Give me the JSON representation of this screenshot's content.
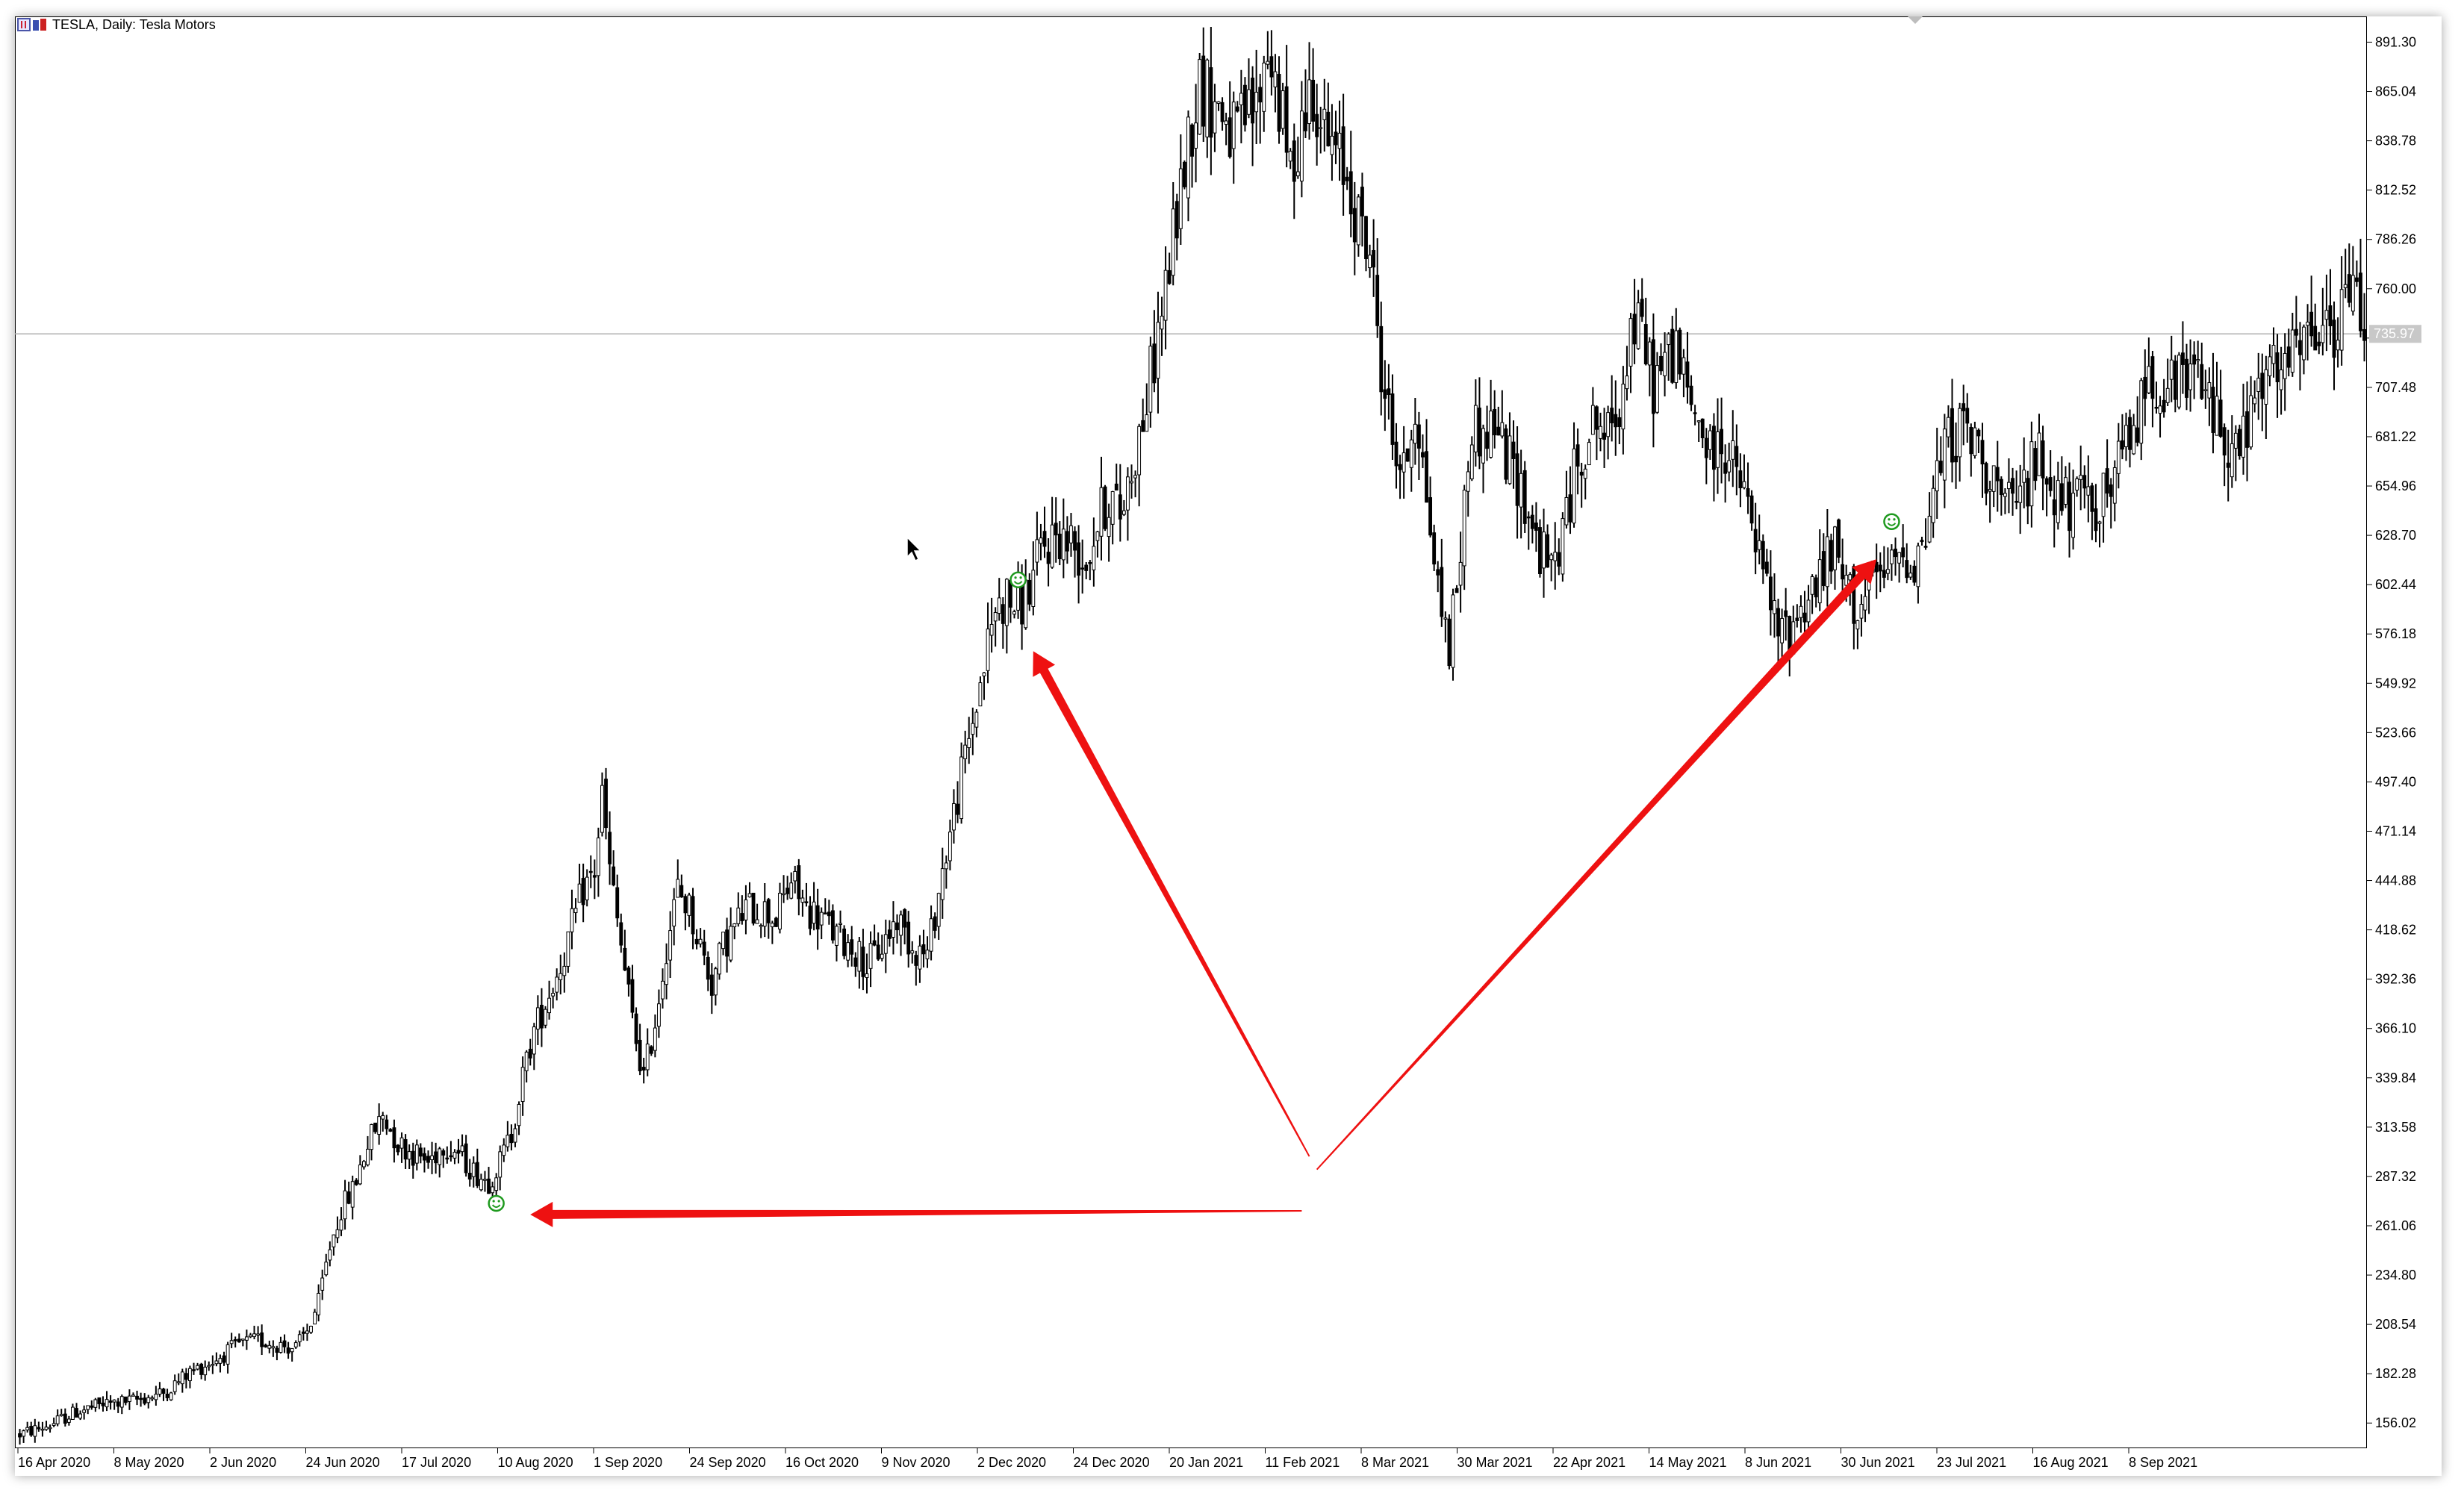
{
  "window": {
    "symbol": "TESLA",
    "timeframe": "Daily",
    "description": "Tesla Motors",
    "title": "TESLA, Daily:  Tesla Motors"
  },
  "icons": [
    "chart-type-icon",
    "mouse-cursor-icon",
    "smiley-marker-icon",
    "red-arrow-annotation"
  ],
  "colors": {
    "candle": "#000000",
    "price_line": "#b0b0b0",
    "arrow": "#ee1111",
    "marker": "#1f9a1f",
    "price_label_bg": "#c8c8c8"
  },
  "chart_data": {
    "type": "candlestick",
    "title": "TESLA, Daily:  Tesla Motors",
    "ylim": [
      143,
      905
    ],
    "grid": false,
    "y_ticks": [
      "891.30",
      "865.04",
      "838.78",
      "812.52",
      "786.26",
      "760.00",
      "733.74",
      "707.48",
      "681.22",
      "654.96",
      "628.70",
      "602.44",
      "576.18",
      "549.92",
      "523.66",
      "497.40",
      "471.14",
      "444.88",
      "418.62",
      "392.36",
      "366.10",
      "339.84",
      "313.58",
      "287.32",
      "261.06",
      "234.80",
      "208.54",
      "182.28",
      "156.02"
    ],
    "x_ticks": [
      "16 Apr 2020",
      "8 May 2020",
      "2 Jun 2020",
      "24 Jun 2020",
      "17 Jul 2020",
      "10 Aug 2020",
      "1 Sep 2020",
      "24 Sep 2020",
      "16 Oct 2020",
      "9 Nov 2020",
      "2 Dec 2020",
      "24 Dec 2020",
      "20 Jan 2021",
      "11 Feb 2021",
      "8 Mar 2021",
      "30 Mar 2021",
      "22 Apr 2021",
      "14 May 2021",
      "8 Jun 2021",
      "30 Jun 2021",
      "23 Jul 2021",
      "16 Aug 2021",
      "8 Sep 2021"
    ],
    "current_price": {
      "value": 735.97,
      "label": "735.97"
    },
    "close_path": [
      [
        0,
        150
      ],
      [
        8,
        155
      ],
      [
        15,
        162
      ],
      [
        22,
        166
      ],
      [
        30,
        168
      ],
      [
        38,
        172
      ],
      [
        45,
        183
      ],
      [
        52,
        190
      ],
      [
        58,
        198
      ],
      [
        63,
        200
      ],
      [
        68,
        198
      ],
      [
        73,
        196
      ],
      [
        76,
        205
      ],
      [
        79,
        220
      ],
      [
        82,
        250
      ],
      [
        85,
        270
      ],
      [
        88,
        280
      ],
      [
        92,
        305
      ],
      [
        96,
        320
      ],
      [
        100,
        305
      ],
      [
        104,
        300
      ],
      [
        108,
        295
      ],
      [
        112,
        305
      ],
      [
        116,
        300
      ],
      [
        120,
        290
      ],
      [
        124,
        285
      ],
      [
        127,
        295
      ],
      [
        130,
        310
      ],
      [
        133,
        340
      ],
      [
        136,
        365
      ],
      [
        140,
        385
      ],
      [
        143,
        400
      ],
      [
        146,
        420
      ],
      [
        149,
        440
      ],
      [
        152,
        450
      ],
      [
        154,
        490
      ],
      [
        156,
        450
      ],
      [
        159,
        410
      ],
      [
        162,
        370
      ],
      [
        165,
        340
      ],
      [
        168,
        370
      ],
      [
        171,
        410
      ],
      [
        174,
        440
      ],
      [
        177,
        430
      ],
      [
        180,
        410
      ],
      [
        183,
        390
      ],
      [
        186,
        410
      ],
      [
        189,
        420
      ],
      [
        192,
        430
      ],
      [
        196,
        430
      ],
      [
        200,
        425
      ],
      [
        204,
        445
      ],
      [
        208,
        430
      ],
      [
        212,
        425
      ],
      [
        216,
        415
      ],
      [
        220,
        410
      ],
      [
        224,
        400
      ],
      [
        228,
        410
      ],
      [
        232,
        425
      ],
      [
        236,
        410
      ],
      [
        240,
        405
      ],
      [
        244,
        450
      ],
      [
        248,
        490
      ],
      [
        252,
        530
      ],
      [
        255,
        560
      ],
      [
        258,
        590
      ],
      [
        261,
        595
      ],
      [
        264,
        590
      ],
      [
        267,
        600
      ],
      [
        270,
        620
      ],
      [
        274,
        630
      ],
      [
        278,
        625
      ],
      [
        282,
        615
      ],
      [
        285,
        635
      ],
      [
        288,
        650
      ],
      [
        291,
        640
      ],
      [
        294,
        665
      ],
      [
        297,
        690
      ],
      [
        300,
        725
      ],
      [
        303,
        760
      ],
      [
        306,
        800
      ],
      [
        309,
        840
      ],
      [
        312,
        870
      ],
      [
        315,
        860
      ],
      [
        318,
        855
      ],
      [
        321,
        840
      ],
      [
        324,
        850
      ],
      [
        327,
        855
      ],
      [
        330,
        890
      ],
      [
        333,
        860
      ],
      [
        336,
        820
      ],
      [
        339,
        850
      ],
      [
        342,
        870
      ],
      [
        345,
        840
      ],
      [
        348,
        830
      ],
      [
        351,
        820
      ],
      [
        354,
        795
      ],
      [
        357,
        780
      ],
      [
        360,
        720
      ],
      [
        363,
        680
      ],
      [
        366,
        660
      ],
      [
        369,
        700
      ],
      [
        372,
        650
      ],
      [
        375,
        600
      ],
      [
        378,
        570
      ],
      [
        381,
        620
      ],
      [
        384,
        690
      ],
      [
        387,
        680
      ],
      [
        390,
        690
      ],
      [
        393,
        670
      ],
      [
        396,
        660
      ],
      [
        399,
        640
      ],
      [
        402,
        620
      ],
      [
        405,
        610
      ],
      [
        408,
        630
      ],
      [
        411,
        660
      ],
      [
        414,
        680
      ],
      [
        417,
        690
      ],
      [
        420,
        680
      ],
      [
        423,
        700
      ],
      [
        426,
        740
      ],
      [
        429,
        735
      ],
      [
        432,
        710
      ],
      [
        435,
        720
      ],
      [
        438,
        730
      ],
      [
        441,
        700
      ],
      [
        444,
        690
      ],
      [
        447,
        670
      ],
      [
        450,
        680
      ],
      [
        453,
        665
      ],
      [
        456,
        650
      ],
      [
        459,
        625
      ],
      [
        462,
        600
      ],
      [
        465,
        575
      ],
      [
        468,
        580
      ],
      [
        471,
        590
      ],
      [
        474,
        600
      ],
      [
        477,
        610
      ],
      [
        480,
        620
      ],
      [
        483,
        600
      ],
      [
        486,
        590
      ],
      [
        489,
        600
      ],
      [
        492,
        605
      ],
      [
        495,
        610
      ],
      [
        498,
        620
      ],
      [
        501,
        615
      ],
      [
        504,
        630
      ],
      [
        507,
        660
      ],
      [
        510,
        680
      ],
      [
        513,
        685
      ],
      [
        516,
        680
      ],
      [
        519,
        670
      ],
      [
        522,
        660
      ],
      [
        525,
        640
      ],
      [
        528,
        645
      ],
      [
        531,
        660
      ],
      [
        534,
        670
      ],
      [
        537,
        655
      ],
      [
        540,
        650
      ],
      [
        543,
        640
      ],
      [
        546,
        650
      ],
      [
        549,
        645
      ],
      [
        552,
        650
      ],
      [
        555,
        665
      ],
      [
        558,
        680
      ],
      [
        561,
        700
      ],
      [
        564,
        715
      ],
      [
        567,
        710
      ],
      [
        570,
        705
      ],
      [
        573,
        715
      ],
      [
        576,
        710
      ],
      [
        579,
        700
      ],
      [
        582,
        690
      ],
      [
        585,
        670
      ],
      [
        588,
        680
      ],
      [
        591,
        700
      ],
      [
        594,
        710
      ],
      [
        597,
        715
      ],
      [
        600,
        720
      ],
      [
        603,
        725
      ],
      [
        606,
        735
      ],
      [
        609,
        740
      ],
      [
        612,
        730
      ],
      [
        615,
        755
      ],
      [
        618,
        760
      ],
      [
        620,
        740
      ]
    ],
    "markers": [
      {
        "bar": 126,
        "price": 273,
        "symbol": "smiley"
      },
      {
        "bar": 264,
        "price": 605,
        "symbol": "smiley"
      },
      {
        "bar": 495,
        "price": 636,
        "symbol": "smiley"
      }
    ],
    "annotations": [
      {
        "type": "arrow",
        "from": [
          339,
          269
        ],
        "to": [
          135,
          267
        ]
      },
      {
        "type": "arrow",
        "from": [
          341,
          298
        ],
        "to": [
          268,
          567
        ]
      },
      {
        "type": "arrow",
        "from": [
          343,
          291
        ],
        "to": [
          491,
          616
        ]
      }
    ]
  }
}
